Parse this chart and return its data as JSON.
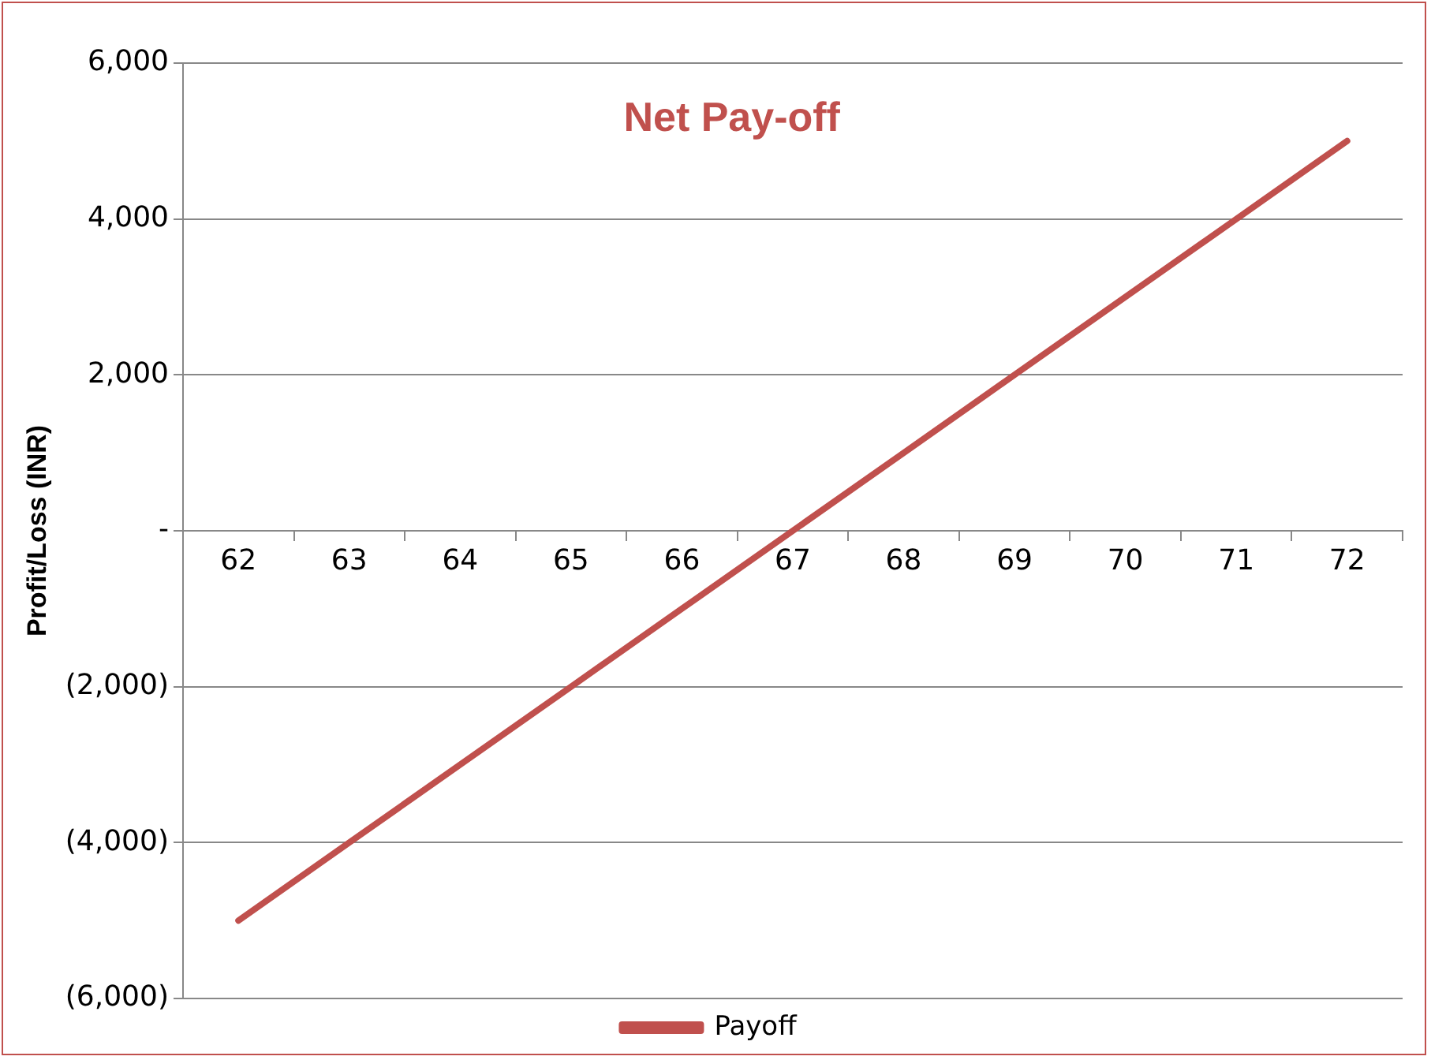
{
  "chart_data": {
    "type": "line",
    "title": "Net Pay-off",
    "ylabel": "Profit/Loss (INR)",
    "categories": [
      "62",
      "63",
      "64",
      "65",
      "66",
      "67",
      "68",
      "69",
      "70",
      "71",
      "72"
    ],
    "series": [
      {
        "name": "Payoff",
        "color": "#c0504d",
        "values": [
          -5000,
          -4000,
          -3000,
          -2000,
          -1000,
          0,
          1000,
          2000,
          3000,
          4000,
          5000
        ]
      }
    ],
    "ylim": [
      -6000,
      6000
    ],
    "yticks": [
      {
        "value": -6000,
        "label": "(6,000)"
      },
      {
        "value": -4000,
        "label": "(4,000)"
      },
      {
        "value": -2000,
        "label": "(2,000)"
      },
      {
        "value": 0,
        "label": "-"
      },
      {
        "value": 2000,
        "label": "2,000"
      },
      {
        "value": 4000,
        "label": "4,000"
      },
      {
        "value": 6000,
        "label": "6,000"
      }
    ],
    "grid": "y",
    "legend": "bottom",
    "marker": "none",
    "line_style": "solid"
  }
}
